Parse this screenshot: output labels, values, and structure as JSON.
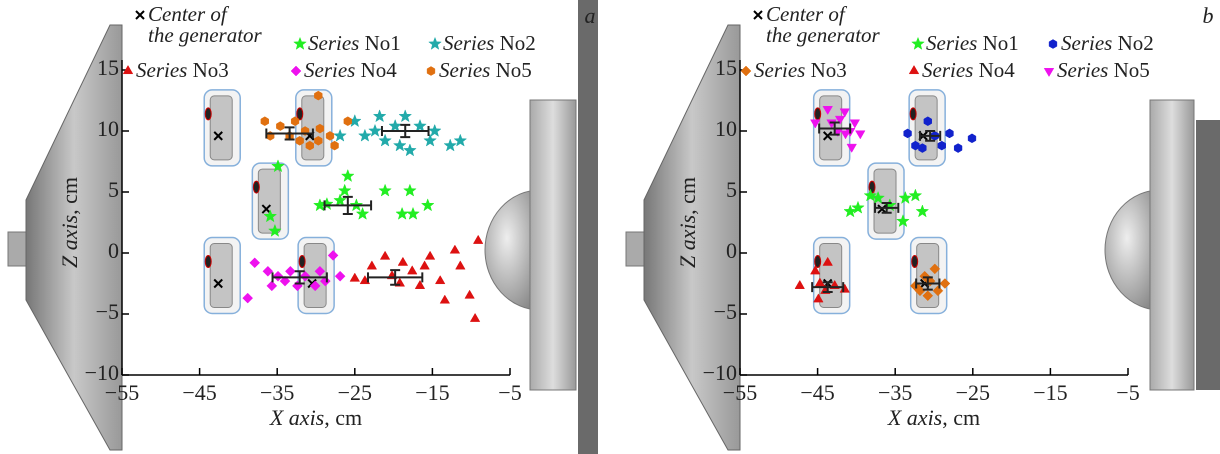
{
  "chart_data": [
    {
      "type": "scatter",
      "panel_label": "a",
      "xlabel": "X axis, cm",
      "ylabel": "Z axis, cm",
      "xlim": [
        -55,
        -5
      ],
      "ylim": [
        -10,
        15
      ],
      "xticks": [
        {
          "value": -55,
          "label": "−55"
        },
        {
          "value": -45,
          "label": "−45"
        },
        {
          "value": -35,
          "label": "−35"
        },
        {
          "value": -25,
          "label": "−25"
        },
        {
          "value": -15,
          "label": "−15"
        },
        {
          "value": -5,
          "label": "−5"
        }
      ],
      "yticks": [
        {
          "value": -10,
          "label": "−10"
        },
        {
          "value": -5,
          "label": "−5"
        },
        0,
        5,
        10,
        15
      ],
      "series": [
        {
          "name": "Center of\nthe generator",
          "color": "#000000",
          "marker": "x",
          "x": [
            -42.6,
            -30.8,
            -36.4,
            -42.6,
            -30.5
          ],
          "values": [
            9.6,
            9.6,
            3.6,
            -2.5,
            -2.5
          ]
        },
        {
          "name": "Series No1",
          "color": "#22ee22",
          "marker": "star",
          "x": [
            -28.6,
            -26.3,
            -25.9,
            -24.8,
            -24,
            -21.1,
            -18.9,
            -17.5,
            -17.9,
            -15.6,
            -35.9,
            -35.3,
            -34.9,
            -29.5,
            -26.9
          ],
          "values": [
            4.0,
            5.1,
            6.3,
            3.9,
            3.2,
            5.1,
            3.2,
            3.2,
            5.1,
            3.9,
            3.0,
            1.8,
            7.1,
            3.9,
            4.3
          ],
          "center": {
            "x": -25.9,
            "y": 3.9,
            "xerr": 3,
            "yerr": 0.7
          }
        },
        {
          "name": "Series No2",
          "color": "#22aaaa",
          "marker": "star",
          "x": [
            -26.9,
            -25,
            -23.7,
            -22.4,
            -21.8,
            -21.1,
            -19.8,
            -19.2,
            -18.5,
            -17.9,
            -16.6,
            -15.3,
            -12.7,
            -14.7,
            -11.4
          ],
          "values": [
            9.6,
            10.8,
            9.6,
            10,
            11.2,
            9.2,
            10.4,
            8.8,
            11.2,
            8.4,
            10.4,
            9.2,
            8.8,
            10,
            9.2
          ],
          "center": {
            "x": -18.5,
            "y": 10,
            "xerr": 3,
            "yerr": 0.5
          }
        },
        {
          "name": "Series No3",
          "color": "#dd1111",
          "marker": "triangle",
          "x": [
            -25,
            -23.7,
            -22.8,
            -21.1,
            -20.2,
            -19.2,
            -18.8,
            -17.6,
            -16.6,
            -16,
            -15.3,
            -14,
            -13.4,
            -12.1,
            -11.4,
            -10.2,
            -9.5,
            -9.1
          ],
          "values": [
            -2.1,
            -2.3,
            -1.1,
            -0.3,
            -1.9,
            -2.5,
            -0.8,
            -1.5,
            -2.7,
            -1.1,
            -0.3,
            -2.3,
            -3.9,
            0.2,
            -1.1,
            -3.5,
            -5.4,
            1.0
          ],
          "center": {
            "x": -19.8,
            "y": -2,
            "xerr": 3.5,
            "yerr": 0.6
          }
        },
        {
          "name": "Series No4",
          "color": "#ee11ee",
          "marker": "diamond",
          "x": [
            -37.9,
            -36.2,
            -35.7,
            -34.9,
            -34,
            -33.3,
            -32.4,
            -31.4,
            -30.1,
            -29.5,
            -28.8,
            -27.8,
            -26.9,
            -38.8
          ],
          "values": [
            -0.8,
            -1.5,
            -2.7,
            -1.9,
            -2.3,
            -1.5,
            -2.7,
            -1.9,
            -2.7,
            -1.5,
            -2.3,
            -0.2,
            -1.9,
            -3.7
          ],
          "center": {
            "x": -32.1,
            "y": -2,
            "xerr": 3.5,
            "yerr": 0.5
          }
        },
        {
          "name": "Series No5",
          "color": "#e07010",
          "marker": "hexagon",
          "x": [
            -36.6,
            -35.9,
            -34.6,
            -33.4,
            -32.7,
            -32.1,
            -31.4,
            -30.8,
            -29.7,
            -29.5,
            -28.2,
            -29.7,
            -25.9,
            -27.6
          ],
          "values": [
            10.8,
            9.6,
            10.4,
            9.6,
            10.8,
            9.2,
            10,
            8.8,
            9.2,
            10.2,
            9.6,
            12.9,
            10.8,
            8.8
          ],
          "center": {
            "x": -33.4,
            "y": 9.8,
            "xerr": 3,
            "yerr": 0.5
          }
        }
      ]
    },
    {
      "type": "scatter",
      "panel_label": "b",
      "xlabel": "X axis, cm",
      "ylabel": "Z axis, cm",
      "xlim": [
        -55,
        -5
      ],
      "ylim": [
        -10,
        15
      ],
      "xticks": [
        {
          "value": -55,
          "label": "−55"
        },
        {
          "value": -45,
          "label": "−45"
        },
        {
          "value": -35,
          "label": "−35"
        },
        {
          "value": -25,
          "label": "−25"
        },
        {
          "value": -15,
          "label": "−15"
        },
        {
          "value": -5,
          "label": "−5"
        }
      ],
      "yticks": [
        {
          "value": -10,
          "label": "−10"
        },
        {
          "value": -5,
          "label": "−5"
        },
        0,
        5,
        10,
        15
      ],
      "series": [
        {
          "name": "Center of\nthe generator",
          "color": "#000000",
          "marker": "x",
          "x": [
            -43.7,
            -31.4,
            -36.7,
            -43.7,
            -31.2
          ],
          "values": [
            9.6,
            9.6,
            3.6,
            -2.5,
            -2.5
          ]
        },
        {
          "name": "Series No1",
          "color": "#22ee22",
          "marker": "star",
          "x": [
            -40.8,
            -39.8,
            -38.2,
            -37.2,
            -35.7,
            -33.7,
            -32.4,
            -34,
            -31.5
          ],
          "values": [
            3.4,
            3.7,
            4.7,
            4.5,
            3.9,
            4.5,
            4.7,
            2.6,
            3.4
          ],
          "center": {
            "x": -36.1,
            "y": 3.7,
            "xerr": 1.5,
            "yerr": 0.4
          }
        },
        {
          "name": "Series No2",
          "color": "#1122cc",
          "marker": "hexagon",
          "x": [
            -33.4,
            -32.4,
            -31.5,
            -30.8,
            -29.9,
            -29,
            -28,
            -26.9,
            -25.1
          ],
          "values": [
            9.8,
            8.8,
            8.6,
            10.8,
            9.6,
            8.8,
            9.8,
            8.6,
            9.4
          ],
          "center": {
            "x": -30.5,
            "y": 9.6,
            "xerr": 1.3,
            "yerr": 0.4
          }
        },
        {
          "name": "Series No3",
          "color": "#e07010",
          "marker": "diamond",
          "x": [
            -31.2,
            -30.5,
            -29.9,
            -29.5,
            -28.6,
            -31.8,
            -30.8,
            -32.4
          ],
          "values": [
            -1.9,
            -2.3,
            -1.3,
            -3.1,
            -2.5,
            -3.1,
            -3.5,
            -2.7
          ],
          "center": {
            "x": -30.8,
            "y": -2.5,
            "xerr": 1.5,
            "yerr": 0.5
          }
        },
        {
          "name": "Series No4",
          "color": "#dd1111",
          "marker": "triangle",
          "x": [
            -47.3,
            -45.3,
            -44.7,
            -44,
            -44.9,
            -42.8,
            -41.5,
            -43.7
          ],
          "values": [
            -2.7,
            -1.5,
            -2.5,
            -3.1,
            -3.8,
            -2.7,
            -3.0,
            -0.8
          ],
          "center": {
            "x": -43.7,
            "y": -2.8,
            "xerr": 2,
            "yerr": 0.4
          }
        },
        {
          "name": "Series No5",
          "color": "#ee11ee",
          "marker": "triangle-down",
          "x": [
            -45.3,
            -43.7,
            -43.2,
            -42.1,
            -41.5,
            -40.8,
            -40.2,
            -42.4,
            -41.4,
            -40.6,
            -39.5
          ],
          "values": [
            10.7,
            11.8,
            10.7,
            11,
            11.6,
            10,
            10.7,
            10,
            9.8,
            8.7,
            9.8
          ],
          "center": {
            "x": -42.8,
            "y": 10.2,
            "xerr": 2,
            "yerr": 0.5
          }
        }
      ]
    }
  ]
}
